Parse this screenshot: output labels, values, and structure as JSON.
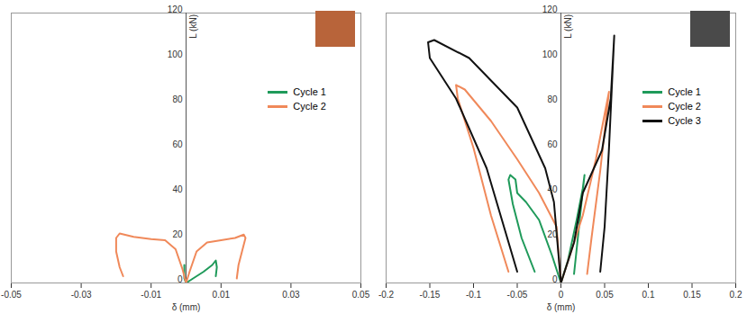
{
  "chart_data": [
    {
      "type": "line",
      "x_label": "δ (mm)",
      "y_label": "L (kN)",
      "xlim": [
        -0.05,
        0.05
      ],
      "xticks": [
        -0.05,
        -0.03,
        -0.01,
        0.01,
        0.03,
        0.05
      ],
      "ylim": [
        0,
        120
      ],
      "yticks": [
        0,
        20,
        40,
        60,
        80,
        100,
        120
      ],
      "grid": false,
      "legend": "upper right",
      "series": [
        {
          "name": "Cycle 1",
          "color": "#1f9a5a",
          "x": [
            -0.0005,
            -0.0005,
            0,
            0.002,
            0.005,
            0.0075,
            0.0085,
            0.0088,
            0.0085
          ],
          "values": [
            8,
            2,
            0,
            2,
            5,
            8,
            10,
            7,
            3
          ]
        },
        {
          "name": "Cycle 2",
          "color": "#f0895a",
          "x": [
            -0.018,
            -0.019,
            -0.02,
            -0.02,
            -0.019,
            -0.015,
            -0.01,
            -0.006,
            -0.003,
            -0.001,
            0,
            0.001,
            0.003,
            0.006,
            0.01,
            0.014,
            0.0165,
            0.017,
            0.016,
            0.015,
            0.0145
          ],
          "values": [
            3,
            7,
            14,
            20,
            22,
            20.5,
            19.5,
            19,
            15,
            6,
            0,
            5,
            14,
            18,
            19,
            20,
            21.5,
            20,
            14,
            8,
            2
          ]
        }
      ]
    },
    {
      "type": "line",
      "x_label": "δ (mm)",
      "y_label": "L (kN)",
      "xlim": [
        -0.2,
        0.2
      ],
      "xticks": [
        -0.2,
        -0.15,
        -0.1,
        -0.05,
        0,
        0.05,
        0.1,
        0.15,
        0.2
      ],
      "ylim": [
        0,
        120
      ],
      "yticks": [
        0,
        20,
        40,
        60,
        80,
        100,
        120
      ],
      "grid": false,
      "legend": "upper right",
      "series": [
        {
          "name": "Cycle 1",
          "color": "#1f9a5a",
          "x": [
            -0.03,
            -0.045,
            -0.055,
            -0.06,
            -0.058,
            -0.052,
            -0.05,
            -0.04,
            -0.025,
            -0.01,
            0,
            0.008,
            0.018,
            0.025,
            0.027,
            0.022,
            0.018,
            0.015
          ],
          "values": [
            5,
            20,
            35,
            46,
            48,
            46,
            40,
            36,
            28,
            12,
            0,
            10,
            28,
            42,
            48,
            30,
            15,
            4
          ]
        },
        {
          "name": "Cycle 2",
          "color": "#f0895a",
          "x": [
            -0.06,
            -0.08,
            -0.1,
            -0.118,
            -0.12,
            -0.11,
            -0.08,
            -0.05,
            -0.025,
            -0.005,
            0,
            0.01,
            0.025,
            0.04,
            0.05,
            0.055,
            0.045,
            0.035,
            0.03
          ],
          "values": [
            5,
            30,
            60,
            82,
            88,
            86,
            72,
            55,
            40,
            25,
            0,
            12,
            30,
            55,
            75,
            85,
            50,
            20,
            4
          ]
        },
        {
          "name": "Cycle 3",
          "color": "#111111",
          "x": [
            -0.05,
            -0.085,
            -0.12,
            -0.15,
            -0.152,
            -0.145,
            -0.105,
            -0.05,
            -0.018,
            -0.008,
            0,
            0.015,
            0.025,
            0.047,
            0.057,
            0.061,
            0.055,
            0.05,
            0.045
          ],
          "values": [
            5,
            51,
            82,
            100,
            107,
            108,
            100,
            78,
            51,
            36,
            0,
            18,
            40,
            59,
            82,
            110,
            60,
            25,
            5
          ]
        }
      ]
    }
  ]
}
